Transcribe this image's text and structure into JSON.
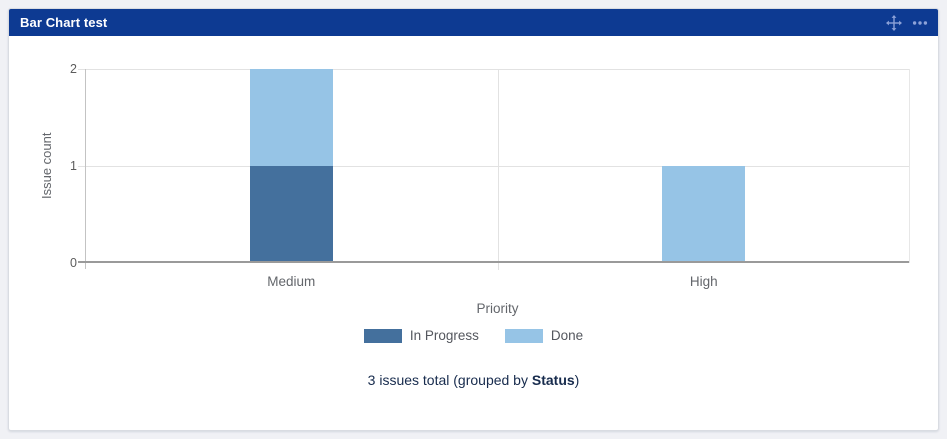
{
  "page": {
    "background": "#f0f1f5"
  },
  "gadget": {
    "title": "Bar Chart test",
    "header_color": "#0d3a92",
    "icon_color": "#8da2d8"
  },
  "chart_data": {
    "type": "bar",
    "stacked": true,
    "categories": [
      "Medium",
      "High"
    ],
    "series": [
      {
        "name": "In Progress",
        "color": "#44709d",
        "values": [
          1,
          0
        ]
      },
      {
        "name": "Done",
        "color": "#96c4e6",
        "values": [
          1,
          1
        ]
      }
    ],
    "xlabel": "Priority",
    "ylabel": "Issue count",
    "ylim": [
      0,
      2
    ],
    "yticks": [
      0,
      1,
      2
    ],
    "grid": true,
    "legend_position": "bottom"
  },
  "summary": {
    "prefix": "3 issues total (grouped by ",
    "group_by": "Status",
    "suffix": ")"
  }
}
